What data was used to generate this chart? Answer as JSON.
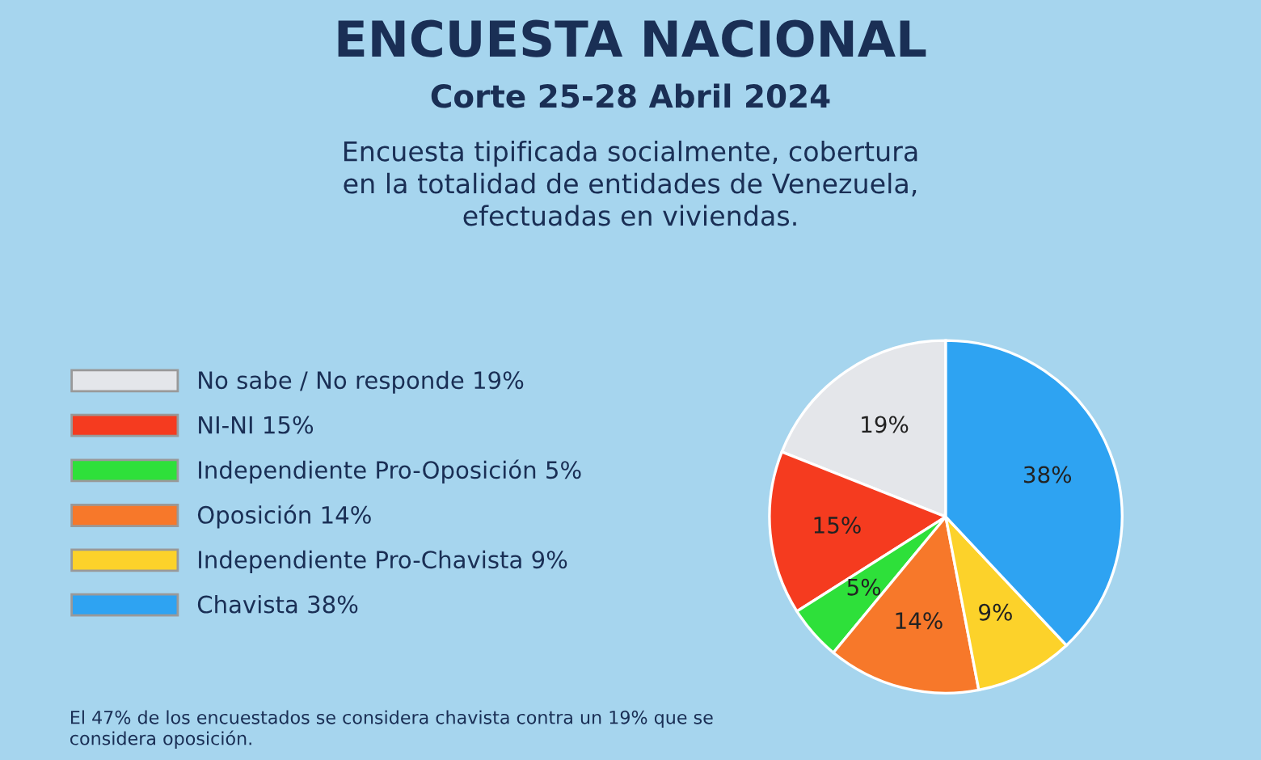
{
  "chart_data": {
    "type": "pie",
    "title": "ENCUESTA NACIONAL",
    "subtitle": "Corte 25-28 Abril 2024\nEncuesta tipificada socialmente, cobertura\nen la totalidad de entidades de Venezuela,\nefectuadas en viviendas.",
    "categories": [
      "No sabe / No responde 19%",
      "NI-NI 15%",
      "Independiente Pro-Oposición 5%",
      "Oposición 14%",
      "Independiente Pro-Chavista 9%",
      "Chavista 38%"
    ],
    "values": [
      19,
      15,
      5,
      14,
      9,
      38
    ],
    "value_labels": [
      "19%",
      "15%",
      "5%",
      "14%",
      "9%",
      "38%"
    ],
    "colors": [
      "#e4e6ea",
      "#f53b1f",
      "#2ee03a",
      "#f7782a",
      "#fcd22a",
      "#2ea3f2"
    ],
    "legend": "left",
    "annotations": [
      "El 47% de los encuestados se considera chavista contra un 19% que se\nconsidera oposición."
    ]
  }
}
